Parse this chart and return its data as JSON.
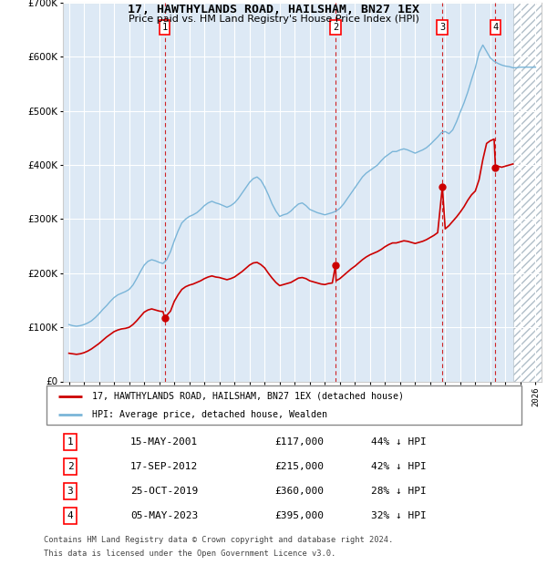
{
  "title": "17, HAWTHYLANDS ROAD, HAILSHAM, BN27 1EX",
  "subtitle": "Price paid vs. HM Land Registry's House Price Index (HPI)",
  "legend_label_red": "17, HAWTHYLANDS ROAD, HAILSHAM, BN27 1EX (detached house)",
  "legend_label_blue": "HPI: Average price, detached house, Wealden",
  "footnote_line1": "Contains HM Land Registry data © Crown copyright and database right 2024.",
  "footnote_line2": "This data is licensed under the Open Government Licence v3.0.",
  "table_entries": [
    {
      "num": "1",
      "date": "15-MAY-2001",
      "price": "£117,000",
      "pct": "44% ↓ HPI"
    },
    {
      "num": "2",
      "date": "17-SEP-2012",
      "price": "£215,000",
      "pct": "42% ↓ HPI"
    },
    {
      "num": "3",
      "date": "25-OCT-2019",
      "price": "£360,000",
      "pct": "28% ↓ HPI"
    },
    {
      "num": "4",
      "date": "05-MAY-2023",
      "price": "£395,000",
      "pct": "32% ↓ HPI"
    }
  ],
  "sale_dates_decimal": [
    2001.37,
    2012.71,
    2019.81,
    2023.34
  ],
  "sale_prices": [
    117000,
    215000,
    360000,
    395000
  ],
  "ylim": [
    0,
    700000
  ],
  "xlim_start": 1994.6,
  "xlim_end": 2026.4,
  "hpi_color": "#7ab5d8",
  "price_color": "#cc0000",
  "background_color": "#dde9f5",
  "hatch_color": "#c0ccd8",
  "hatched_region_start": 2024.5,
  "grid_color": "#ffffff",
  "spine_color": "#cccccc"
}
